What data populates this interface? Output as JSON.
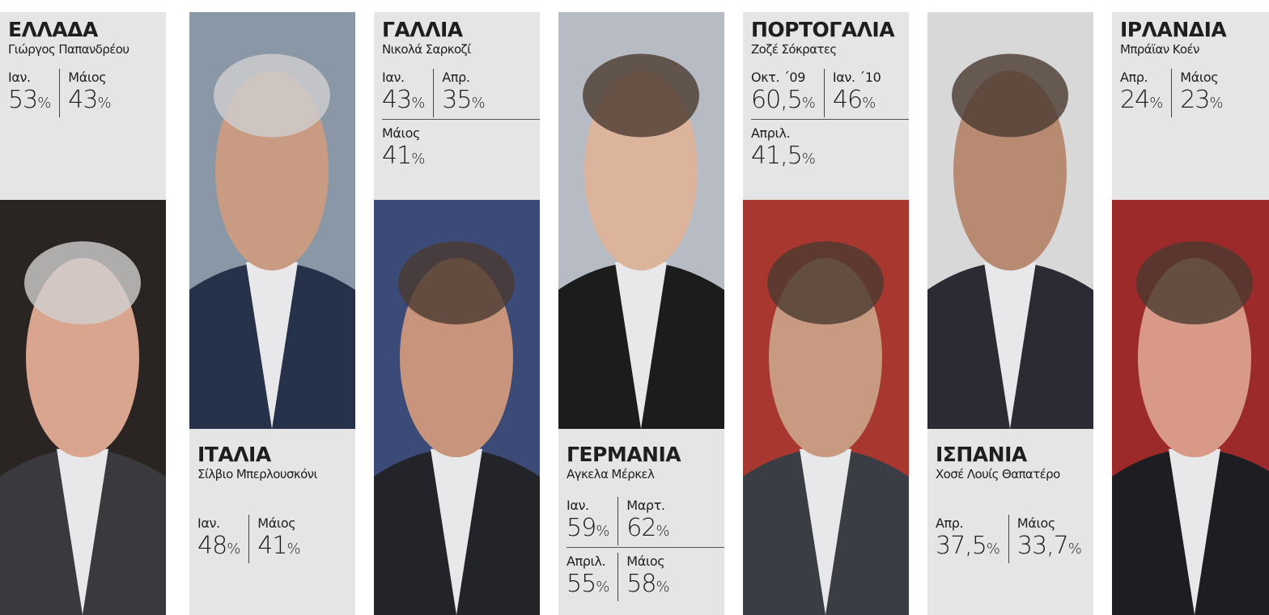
{
  "panels": [
    {
      "country": "ΕΛΛΑΔΑ",
      "name": "Γιώργος Παπανδρέου",
      "rows": [
        [
          {
            "period": "Ιαν.",
            "value": "53",
            "unit": "%"
          },
          {
            "period": "Μάιος",
            "value": "43",
            "unit": "%"
          }
        ]
      ]
    },
    {
      "country": "ΙΤΑΛΙΑ",
      "name": "Σίλβιο Μπερλουσκόνι",
      "rows": [
        [
          {
            "period": "Ιαν.",
            "value": "48",
            "unit": "%"
          },
          {
            "period": "Μάιος",
            "value": "41",
            "unit": "%"
          }
        ]
      ]
    },
    {
      "country": "ΓΑΛΛΙΑ",
      "name": "Νικολά Σαρκοζί",
      "rows": [
        [
          {
            "period": "Ιαν.",
            "value": "43",
            "unit": "%"
          },
          {
            "period": "Απρ.",
            "value": "35",
            "unit": "%"
          }
        ],
        [
          {
            "period": "Μάιος",
            "value": "41",
            "unit": "%"
          }
        ]
      ]
    },
    {
      "country": "ΓΕΡΜΑΝΙΑ",
      "name": "Αγκελα Μέρκελ",
      "rows": [
        [
          {
            "period": "Ιαν.",
            "value": "59",
            "unit": "%"
          },
          {
            "period": "Μαρτ.",
            "value": "62",
            "unit": "%"
          }
        ],
        [
          {
            "period": "Απριλ.",
            "value": "55",
            "unit": "%"
          },
          {
            "period": "Μάιος",
            "value": "58",
            "unit": "%"
          }
        ]
      ]
    },
    {
      "country": "ΠΟΡΤΟΓΑΛΙΑ",
      "name": "Ζοζέ Σόκρατες",
      "rows": [
        [
          {
            "period": "Οκτ. ΄09",
            "value": "60,5",
            "unit": "%"
          },
          {
            "period": "Ιαν. ΄10",
            "value": "46",
            "unit": "%"
          }
        ],
        [
          {
            "period": "Απριλ.",
            "value": "41,5",
            "unit": "%"
          }
        ]
      ]
    },
    {
      "country": "ΙΣΠΑΝΙΑ",
      "name": "Χοσέ Λουίς Θαπατέρο",
      "rows": [
        [
          {
            "period": "Απρ.",
            "value": "37,5",
            "unit": "%"
          },
          {
            "period": "Μάιος",
            "value": "33,7",
            "unit": "%"
          }
        ]
      ]
    },
    {
      "country": "ΙΡΛΑΝΔΙΑ",
      "name": "Μπράϊαν Κοέν",
      "rows": [
        [
          {
            "period": "Απρ.",
            "value": "24",
            "unit": "%"
          },
          {
            "period": "Μάιος",
            "value": "23",
            "unit": "%"
          }
        ]
      ]
    }
  ]
}
